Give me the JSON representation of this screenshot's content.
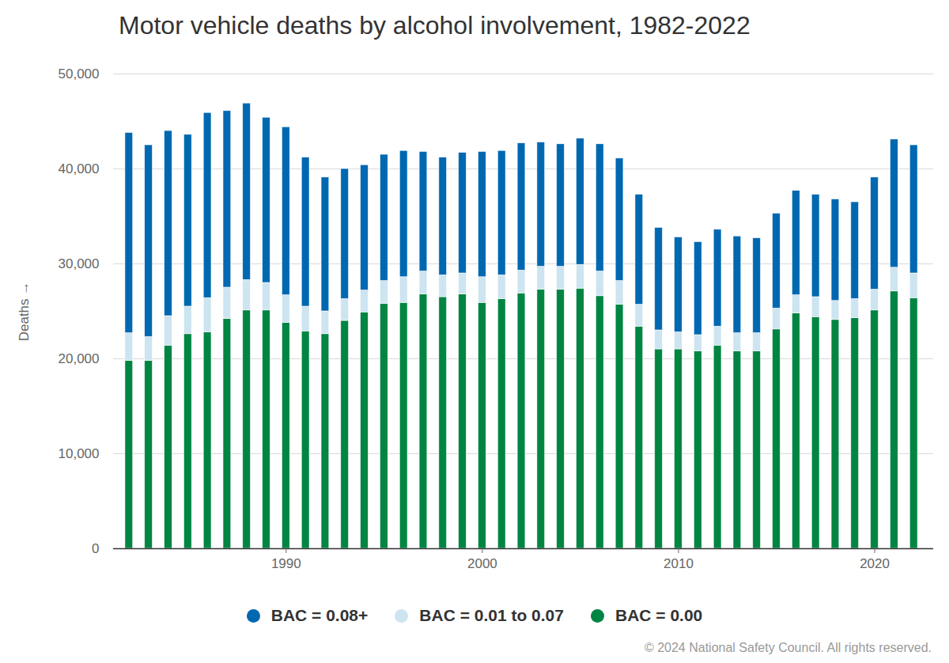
{
  "chart_data": {
    "type": "bar",
    "title": "Motor vehicle deaths by alcohol involvement, 1982-2022",
    "caption": "© 2024 National Safety Council. All rights reserved.",
    "y_label": "Deaths",
    "stacked": true,
    "grid": true,
    "legend": "bottom",
    "x": [
      1982,
      1983,
      1984,
      1985,
      1986,
      1987,
      1988,
      1989,
      1990,
      1991,
      1992,
      1993,
      1994,
      1995,
      1996,
      1997,
      1998,
      1999,
      2000,
      2001,
      2002,
      2003,
      2004,
      2005,
      2006,
      2007,
      2008,
      2009,
      2010,
      2011,
      2012,
      2013,
      2014,
      2015,
      2016,
      2017,
      2018,
      2019,
      2020,
      2021,
      2022
    ],
    "xlim": [
      1981.2,
      2023
    ],
    "xticks": [
      1990,
      2000,
      2010,
      2020
    ],
    "ylim": [
      0,
      50000
    ],
    "yticks": [
      0,
      {
        "value": 10000,
        "label": "10,000"
      },
      {
        "value": 20000,
        "label": "20,000"
      },
      {
        "value": 30000,
        "label": "30,000"
      },
      {
        "value": 40000,
        "label": "40,000"
      },
      {
        "value": 50000,
        "label": "50,000"
      }
    ],
    "series": [
      {
        "name": "BAC = 0.08+",
        "color": "#0068b0",
        "values": [
          21100,
          20200,
          19500,
          18100,
          19500,
          18600,
          18600,
          17400,
          17700,
          15700,
          14100,
          13700,
          13200,
          13300,
          13300,
          12600,
          12400,
          12700,
          13200,
          13100,
          13400,
          13100,
          12900,
          13300,
          13400,
          12900,
          11600,
          10800,
          10000,
          9800,
          10200,
          10200,
          10000,
          10000,
          11000,
          10800,
          10700,
          10200,
          11800,
          13500,
          13500
        ]
      },
      {
        "name": "BAC = 0.01 to 0.07",
        "color": "#cde4f1",
        "values": [
          2900,
          2500,
          3100,
          2900,
          3600,
          3300,
          3200,
          2900,
          2900,
          2600,
          2400,
          2300,
          2300,
          2400,
          2700,
          2400,
          2300,
          2200,
          2700,
          2500,
          2400,
          2400,
          2400,
          2500,
          2600,
          2500,
          2300,
          2000,
          1800,
          1700,
          2000,
          1900,
          1900,
          2200,
          1900,
          2100,
          2000,
          2000,
          2200,
          2500,
          2600
        ]
      },
      {
        "name": "BAC = 0.00",
        "color": "#008542",
        "values": [
          19800,
          19800,
          21400,
          22600,
          22800,
          24200,
          25100,
          25100,
          23800,
          22900,
          22600,
          24000,
          24900,
          25800,
          25900,
          26800,
          26500,
          26800,
          25900,
          26300,
          26900,
          27300,
          27300,
          27400,
          26600,
          25700,
          23400,
          21000,
          21000,
          20800,
          21400,
          20800,
          20800,
          23100,
          24800,
          24400,
          24100,
          24300,
          25100,
          27100,
          26400
        ]
      }
    ]
  }
}
